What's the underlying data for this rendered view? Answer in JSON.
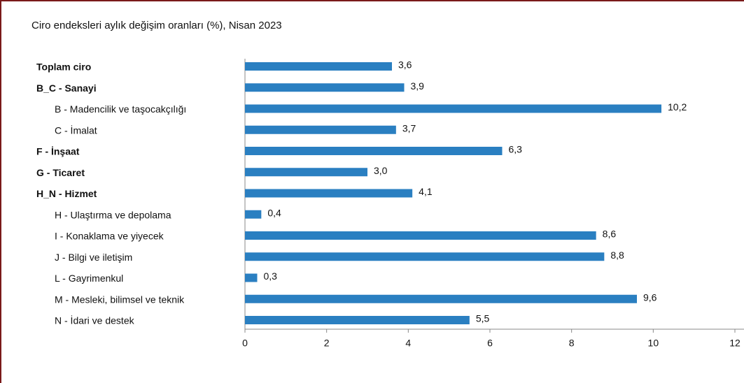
{
  "chart_data": {
    "type": "bar",
    "orientation": "horizontal",
    "title": "Ciro endeksleri aylık değişim oranları (%), Nisan 2023",
    "categories": [
      "Toplam ciro",
      "B_C - Sanayi",
      "B - Madencilik ve taşocakçılığı",
      "C - İmalat",
      "F - İnşaat",
      "G - Ticaret",
      "H_N - Hizmet",
      "H - Ulaştırma ve depolama",
      "I - Konaklama ve yiyecek",
      "J - Bilgi ve iletişim",
      "L - Gayrimenkul",
      "M - Mesleki, bilimsel ve teknik",
      "N - İdari ve destek"
    ],
    "values": [
      3.6,
      3.9,
      10.2,
      3.7,
      6.3,
      3.0,
      4.1,
      0.4,
      8.6,
      8.8,
      0.3,
      9.6,
      5.5
    ],
    "value_labels": [
      "3,6",
      "3,9",
      "10,2",
      "3,7",
      "6,3",
      "3,0",
      "4,1",
      "0,4",
      "8,6",
      "8,8",
      "0,3",
      "9,6",
      "5,5"
    ],
    "color": "#2a7fc1",
    "xlim": [
      0,
      12
    ],
    "xticks": [
      0,
      2,
      4,
      6,
      8,
      10,
      12
    ]
  }
}
